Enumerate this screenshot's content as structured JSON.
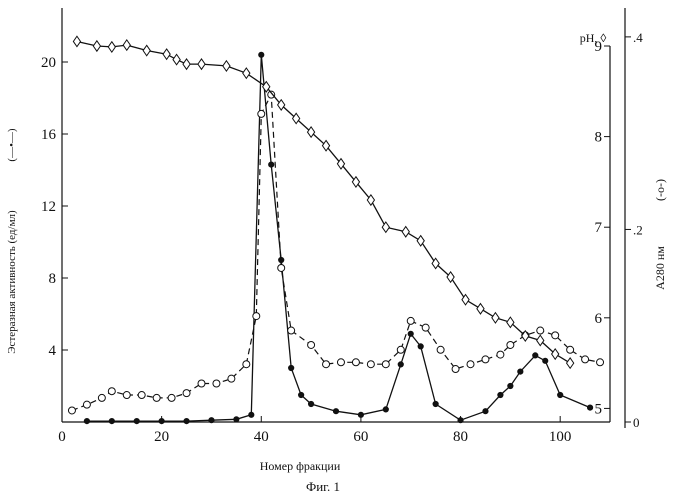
{
  "chart_data": {
    "type": "line",
    "title": "",
    "caption": "Фиг. 1",
    "xlabel": "Номер фракции",
    "xlim": [
      0,
      110
    ],
    "x_ticks": [
      0,
      20,
      40,
      60,
      80,
      100
    ],
    "y_left": {
      "label": "Эстеразная активность (ед/мл)",
      "marker_hint": "(—•—)",
      "lim": [
        0,
        23
      ],
      "ticks": [
        4,
        8,
        12,
        16,
        20
      ]
    },
    "y_ph": {
      "label": "pH, ◊",
      "lim": [
        4.85,
        9.0
      ],
      "ticks": [
        5,
        6,
        7,
        8,
        9
      ]
    },
    "y_a280": {
      "label": "A280 нм",
      "marker_hint": "(-o-)",
      "lim": [
        0,
        0.43
      ],
      "ticks": [
        0,
        0.2,
        0.4
      ],
      "tick_labels": [
        "0",
        ".2",
        ".4"
      ]
    },
    "series": [
      {
        "name": "Эстеразная активность (ед/мл)",
        "axis": "left",
        "marker": "filled-circle",
        "line": "solid",
        "x": [
          5,
          10,
          15,
          20,
          25,
          30,
          35,
          38,
          40,
          42,
          44,
          46,
          48,
          50,
          55,
          60,
          65,
          68,
          70,
          72,
          75,
          80,
          85,
          88,
          90,
          92,
          95,
          97,
          100,
          106
        ],
        "y": [
          0.05,
          0.05,
          0.05,
          0.05,
          0.05,
          0.1,
          0.15,
          0.4,
          20.4,
          14.3,
          9.0,
          3.0,
          1.5,
          1.0,
          0.6,
          0.4,
          0.7,
          3.2,
          4.9,
          4.2,
          1.0,
          0.1,
          0.6,
          1.5,
          2.0,
          2.8,
          3.7,
          3.4,
          1.5,
          0.8
        ]
      },
      {
        "name": "A280 нм",
        "axis": "a280",
        "marker": "open-circle",
        "line": "dashed",
        "x": [
          2,
          5,
          8,
          10,
          13,
          16,
          19,
          22,
          25,
          28,
          31,
          34,
          37,
          39,
          40,
          42,
          44,
          46,
          50,
          53,
          56,
          59,
          62,
          65,
          68,
          70,
          73,
          76,
          79,
          82,
          85,
          88,
          90,
          93,
          96,
          99,
          102,
          105,
          108
        ],
        "y": [
          0.012,
          0.018,
          0.025,
          0.032,
          0.028,
          0.028,
          0.025,
          0.025,
          0.03,
          0.04,
          0.04,
          0.045,
          0.06,
          0.11,
          0.32,
          0.34,
          0.16,
          0.095,
          0.08,
          0.06,
          0.062,
          0.062,
          0.06,
          0.06,
          0.075,
          0.105,
          0.098,
          0.075,
          0.055,
          0.06,
          0.065,
          0.07,
          0.08,
          0.09,
          0.095,
          0.09,
          0.075,
          0.065,
          0.062
        ]
      },
      {
        "name": "pH, ◊",
        "axis": "ph",
        "marker": "open-diamond",
        "line": "solid",
        "x": [
          3,
          7,
          10,
          13,
          17,
          21,
          23,
          25,
          28,
          33,
          37,
          41,
          44,
          47,
          50,
          53,
          56,
          59,
          62,
          65,
          69,
          72,
          75,
          78,
          81,
          84,
          87,
          90,
          93,
          96,
          99,
          102
        ],
        "y": [
          9.05,
          9.0,
          8.99,
          9.01,
          8.95,
          8.91,
          8.85,
          8.8,
          8.8,
          8.78,
          8.7,
          8.55,
          8.35,
          8.2,
          8.05,
          7.9,
          7.7,
          7.5,
          7.3,
          7.0,
          6.95,
          6.85,
          6.6,
          6.45,
          6.2,
          6.1,
          6.0,
          5.95,
          5.8,
          5.75,
          5.6,
          5.5
        ]
      }
    ]
  }
}
